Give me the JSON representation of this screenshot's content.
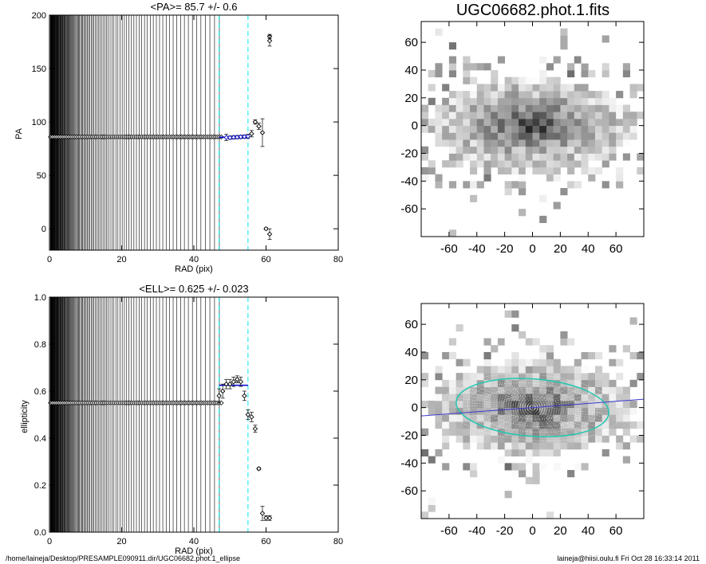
{
  "footer": {
    "left": "/home/laineja/Desktop/PRESAMPLE090911.dir/UGC06682.phot.1_ellipse",
    "right": "laineja@hiisi.oulu.fi  Fri Oct 28 16:33:14 2011"
  },
  "chart_data": [
    {
      "type": "scatter",
      "title": "<PA>=  85.7 +/-   0.6",
      "xlabel": "RAD (pix)",
      "ylabel": "PA",
      "xlim": [
        0,
        80
      ],
      "ylim": [
        -20,
        200
      ],
      "xticks": [
        0,
        20,
        40,
        60,
        80
      ],
      "yticks": [
        0,
        50,
        100,
        150,
        200
      ],
      "fit_range": [
        47,
        55
      ],
      "mean": 85.7,
      "mean_err": 0.6,
      "series": [
        {
          "x": [
            49,
            50,
            51,
            52,
            53,
            54,
            55,
            56,
            57,
            58,
            59,
            60,
            61
          ],
          "y": [
            85.5,
            85.3,
            85.6,
            85.8,
            86.0,
            86.2,
            86.5,
            89,
            100,
            96,
            90,
            0,
            180
          ],
          "err": [
            3,
            1.5,
            1.5,
            1.5,
            1.5,
            1.5,
            2,
            3,
            2,
            3,
            13,
            1,
            2
          ]
        },
        {
          "x": [
            61
          ],
          "y": [
            176
          ],
          "err": [
            5
          ]
        },
        {
          "x": [
            61
          ],
          "y": [
            -5
          ],
          "err": [
            5
          ]
        }
      ]
    },
    {
      "type": "scatter",
      "title": "<ELL>= 0.625 +/-  0.023",
      "xlabel": "RAD (pix)",
      "ylabel": "ellipticity",
      "xlim": [
        0,
        80
      ],
      "ylim": [
        0,
        1
      ],
      "xticks": [
        0,
        20,
        40,
        60,
        80
      ],
      "yticks": [
        0.0,
        0.2,
        0.4,
        0.6,
        0.8,
        1.0
      ],
      "fit_range": [
        47,
        55
      ],
      "mean": 0.625,
      "mean_err": 0.023,
      "series": [
        {
          "x": [
            47,
            48,
            49,
            50,
            51,
            52,
            53,
            54,
            55,
            56,
            57,
            58,
            59,
            60,
            61
          ],
          "y": [
            0.58,
            0.6,
            0.63,
            0.63,
            0.64,
            0.65,
            0.64,
            0.58,
            0.5,
            0.49,
            0.44,
            0.27,
            0.08,
            0.06,
            0.06
          ],
          "err": [
            0.03,
            0.03,
            0.02,
            0.02,
            0.02,
            0.015,
            0.02,
            0.02,
            0.02,
            0.02,
            0.015,
            0.005,
            0.03,
            0.01,
            0.01
          ]
        }
      ]
    },
    {
      "type": "heatmap",
      "title": "UGC06682.phot.1.fits",
      "xlim": [
        -80,
        80
      ],
      "ylim": [
        -80,
        75
      ],
      "xticks": [
        -60,
        -40,
        -20,
        0,
        20,
        40,
        60
      ],
      "yticks": [
        -60,
        -40,
        -20,
        0,
        20,
        40,
        60
      ]
    },
    {
      "type": "heatmap",
      "title": "",
      "xlim": [
        -80,
        80
      ],
      "ylim": [
        -80,
        75
      ],
      "xticks": [
        -60,
        -40,
        -20,
        0,
        20,
        40,
        60
      ],
      "yticks": [
        -60,
        -40,
        -20,
        0,
        20,
        40,
        60
      ],
      "ellipse": {
        "pa": 85.7,
        "ell": 0.625,
        "sma": 55
      }
    }
  ]
}
